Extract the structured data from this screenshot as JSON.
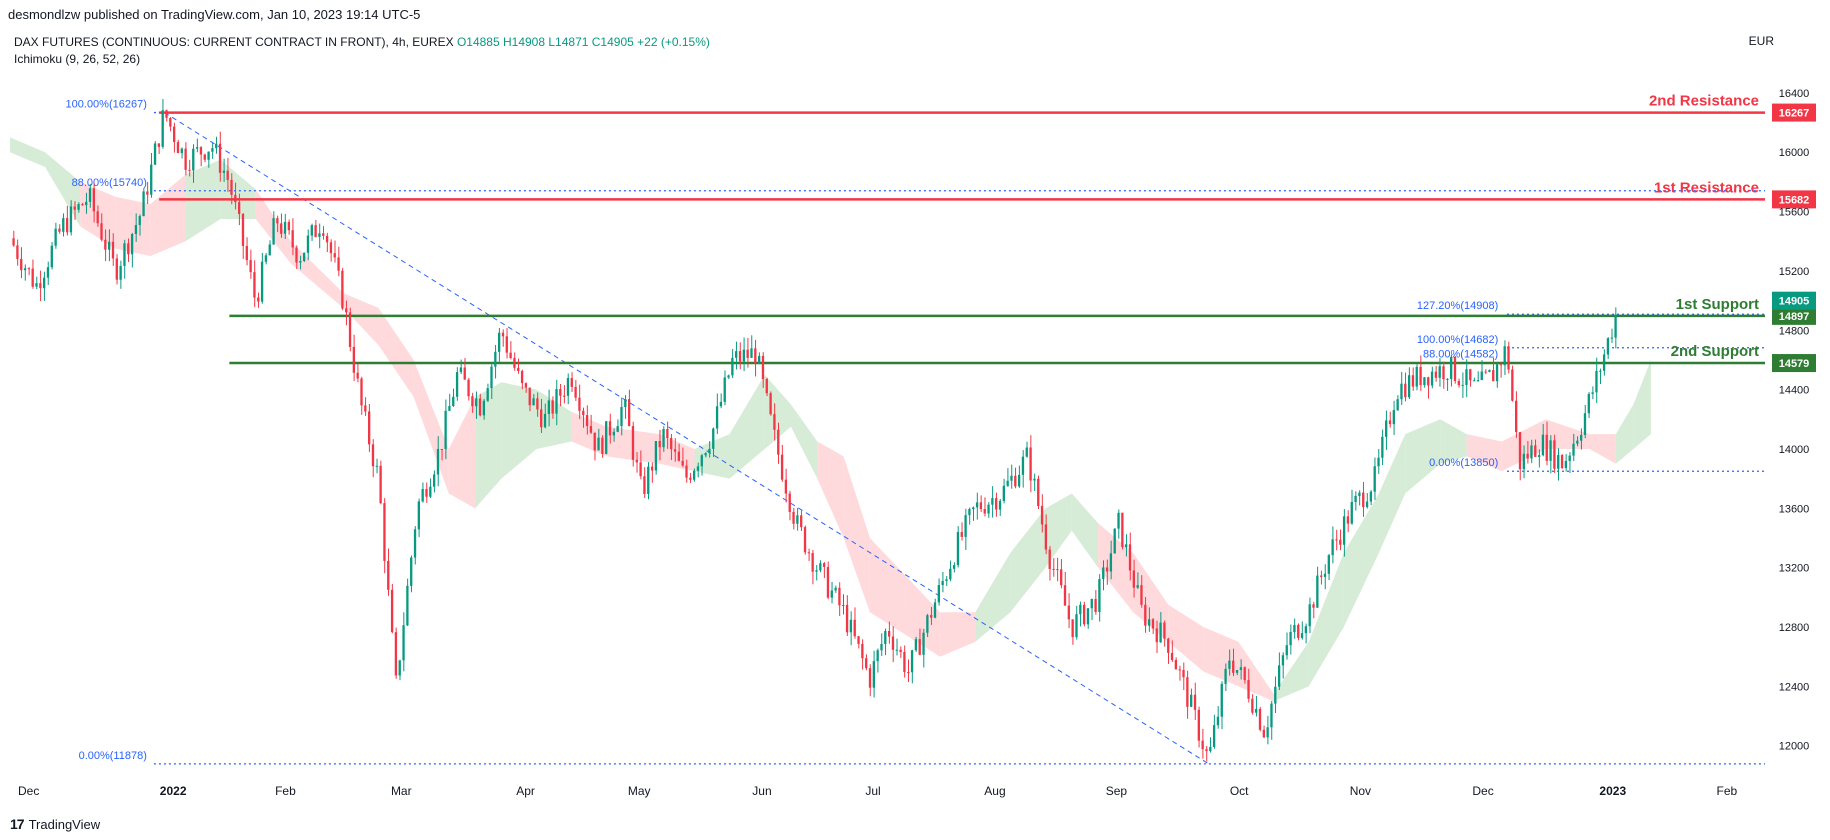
{
  "header": {
    "published_by": "desmondlzw published on TradingView.com, Jan 10, 2023 19:14 UTC-5"
  },
  "legend": {
    "symbol": "DAX FUTURES (CONTINUOUS: CURRENT CONTRACT IN FRONT), 4h, EUREX",
    "open": "O14885",
    "high": "H14908",
    "low": "L14871",
    "close": "C14905",
    "change": "+22 (+0.15%)",
    "indicator": "Ichimoku (9, 26, 52, 26)"
  },
  "currency": "EUR",
  "footer": {
    "brand": "TradingView",
    "logo": "17"
  },
  "colors": {
    "up": "#089981",
    "down": "#f23645",
    "resistance": "#f23645",
    "support": "#2e7d32",
    "fib": "#2962ff",
    "cloud_bull": "#c8e6c9",
    "cloud_bear": "#ffcdd2"
  },
  "chart_data": {
    "type": "candlestick",
    "ylim": [
      11850,
      16500
    ],
    "y_ticks": [
      12000,
      12400,
      12800,
      13200,
      13600,
      14000,
      14400,
      14800,
      15200,
      15600,
      16000,
      16400
    ],
    "y_tick_labels": [
      "12000",
      "12400",
      "12800",
      "13200",
      "13600",
      "14000",
      "14400",
      "14800",
      "15200",
      "15600",
      "16000",
      "16400"
    ],
    "x_labels": [
      "Dec",
      "2022",
      "Feb",
      "Mar",
      "Apr",
      "May",
      "Jun",
      "Jul",
      "Aug",
      "Sep",
      "Oct",
      "Nov",
      "Dec",
      "2023",
      "Feb"
    ],
    "x_label_positions": [
      0.0,
      0.0808,
      0.1465,
      0.2125,
      0.2839,
      0.3475,
      0.4184,
      0.4828,
      0.5506,
      0.6198,
      0.6905,
      0.7588,
      0.8287,
      0.9011,
      0.9678
    ],
    "price_path": [
      [
        0.0,
        15420
      ],
      [
        0.015,
        15100
      ],
      [
        0.03,
        15500
      ],
      [
        0.045,
        15700
      ],
      [
        0.06,
        15200
      ],
      [
        0.075,
        15600
      ],
      [
        0.088,
        16267
      ],
      [
        0.1,
        15950
      ],
      [
        0.115,
        16050
      ],
      [
        0.125,
        15800
      ],
      [
        0.14,
        15000
      ],
      [
        0.152,
        15550
      ],
      [
        0.165,
        15300
      ],
      [
        0.178,
        15550
      ],
      [
        0.19,
        15000
      ],
      [
        0.2,
        14300
      ],
      [
        0.21,
        13800
      ],
      [
        0.22,
        12400
      ],
      [
        0.232,
        13600
      ],
      [
        0.245,
        14000
      ],
      [
        0.255,
        14500
      ],
      [
        0.268,
        14300
      ],
      [
        0.28,
        14800
      ],
      [
        0.292,
        14400
      ],
      [
        0.305,
        14200
      ],
      [
        0.32,
        14500
      ],
      [
        0.335,
        14000
      ],
      [
        0.35,
        14300
      ],
      [
        0.36,
        13700
      ],
      [
        0.372,
        14100
      ],
      [
        0.385,
        13800
      ],
      [
        0.4,
        14100
      ],
      [
        0.412,
        14600
      ],
      [
        0.425,
        14650
      ],
      [
        0.435,
        14100
      ],
      [
        0.448,
        13500
      ],
      [
        0.46,
        13200
      ],
      [
        0.475,
        12900
      ],
      [
        0.49,
        12450
      ],
      [
        0.5,
        12800
      ],
      [
        0.512,
        12500
      ],
      [
        0.525,
        12900
      ],
      [
        0.538,
        13300
      ],
      [
        0.55,
        13600
      ],
      [
        0.565,
        13700
      ],
      [
        0.58,
        13950
      ],
      [
        0.592,
        13300
      ],
      [
        0.605,
        12800
      ],
      [
        0.62,
        13000
      ],
      [
        0.632,
        13500
      ],
      [
        0.645,
        12900
      ],
      [
        0.66,
        12700
      ],
      [
        0.672,
        12300
      ],
      [
        0.683,
        11900
      ],
      [
        0.695,
        12600
      ],
      [
        0.705,
        12400
      ],
      [
        0.715,
        12100
      ],
      [
        0.728,
        12700
      ],
      [
        0.74,
        12900
      ],
      [
        0.752,
        13300
      ],
      [
        0.765,
        13600
      ],
      [
        0.778,
        13800
      ],
      [
        0.79,
        14400
      ],
      [
        0.805,
        14500
      ],
      [
        0.82,
        14550
      ],
      [
        0.835,
        14400
      ],
      [
        0.845,
        14500
      ],
      [
        0.853,
        14682
      ],
      [
        0.86,
        13900
      ],
      [
        0.872,
        14050
      ],
      [
        0.885,
        13900
      ],
      [
        0.895,
        14150
      ],
      [
        0.905,
        14500
      ],
      [
        0.915,
        14900
      ]
    ],
    "cloud": [
      [
        0.0,
        16100,
        16000,
        "bull"
      ],
      [
        0.02,
        16000,
        15900,
        "bull"
      ],
      [
        0.04,
        15800,
        15500,
        "bear"
      ],
      [
        0.06,
        15700,
        15350,
        "bear"
      ],
      [
        0.08,
        15650,
        15300,
        "bear"
      ],
      [
        0.1,
        15850,
        15400,
        "bull"
      ],
      [
        0.12,
        15950,
        15550,
        "bull"
      ],
      [
        0.14,
        15750,
        15550,
        "bear"
      ],
      [
        0.16,
        15400,
        15250,
        "bear"
      ],
      [
        0.19,
        15050,
        14950,
        "bear"
      ],
      [
        0.21,
        14950,
        14700,
        "bear"
      ],
      [
        0.23,
        14600,
        14350,
        "bear"
      ],
      [
        0.25,
        14000,
        13700,
        "bear"
      ],
      [
        0.265,
        14350,
        13600,
        "bull"
      ],
      [
        0.28,
        14450,
        13800,
        "bull"
      ],
      [
        0.3,
        14400,
        14000,
        "bull"
      ],
      [
        0.32,
        14250,
        14050,
        "bear"
      ],
      [
        0.34,
        14150,
        13950,
        "bear"
      ],
      [
        0.37,
        14100,
        13900,
        "bear"
      ],
      [
        0.39,
        14000,
        13850,
        "bull"
      ],
      [
        0.41,
        14100,
        13800,
        "bull"
      ],
      [
        0.43,
        14500,
        14000,
        "bull"
      ],
      [
        0.445,
        14300,
        14150,
        "bull"
      ],
      [
        0.46,
        14050,
        13800,
        "bear"
      ],
      [
        0.475,
        13950,
        13400,
        "bear"
      ],
      [
        0.49,
        13400,
        12900,
        "bear"
      ],
      [
        0.51,
        13150,
        12750,
        "bear"
      ],
      [
        0.53,
        12900,
        12600,
        "bear"
      ],
      [
        0.55,
        12900,
        12700,
        "bull"
      ],
      [
        0.57,
        13300,
        12900,
        "bull"
      ],
      [
        0.59,
        13600,
        13200,
        "bull"
      ],
      [
        0.605,
        13700,
        13450,
        "bull"
      ],
      [
        0.62,
        13500,
        13200,
        "bear"
      ],
      [
        0.64,
        13300,
        12900,
        "bear"
      ],
      [
        0.66,
        12950,
        12700,
        "bear"
      ],
      [
        0.68,
        12800,
        12500,
        "bear"
      ],
      [
        0.7,
        12700,
        12400,
        "bear"
      ],
      [
        0.72,
        12350,
        12300,
        "bull"
      ],
      [
        0.74,
        12700,
        12400,
        "bull"
      ],
      [
        0.76,
        13300,
        12800,
        "bull"
      ],
      [
        0.78,
        13700,
        13300,
        "bull"
      ],
      [
        0.795,
        14100,
        13700,
        "bull"
      ],
      [
        0.815,
        14200,
        13900,
        "bull"
      ],
      [
        0.83,
        14100,
        13950,
        "bear"
      ],
      [
        0.85,
        14050,
        13850,
        "bear"
      ],
      [
        0.875,
        14200,
        14000,
        "bear"
      ],
      [
        0.9,
        14100,
        14000,
        "bear"
      ],
      [
        0.915,
        14100,
        13900,
        "bull"
      ],
      [
        0.925,
        14300,
        14000,
        "bull"
      ],
      [
        0.935,
        14600,
        14100,
        "bull"
      ]
    ],
    "levels": [
      {
        "name": "2nd Resistance",
        "value": 16267,
        "label": "16267",
        "kind": "resistance"
      },
      {
        "name": "1st Resistance",
        "value": 15682,
        "label": "15682",
        "kind": "resistance"
      },
      {
        "name": "1st Support",
        "value": 14897,
        "label": "14897",
        "kind": "support"
      },
      {
        "name": "2nd Support",
        "value": 14579,
        "label": "14579",
        "kind": "support"
      }
    ],
    "last_price": {
      "value": 14905,
      "label": "14905"
    },
    "fib_left": [
      {
        "label": "100.00%(16267)",
        "value": 16267
      },
      {
        "label": "88.00%(15740)",
        "value": 15740
      },
      {
        "label": "0.00%(11878)",
        "value": 11878
      }
    ],
    "fib_right": [
      {
        "label": "127.20%(14908)",
        "value": 14908
      },
      {
        "label": "100.00%(14682)",
        "value": 14682
      },
      {
        "label": "88.00%(14582)",
        "value": 14582
      },
      {
        "label": "0.00%(13850)",
        "value": 13850
      }
    ]
  }
}
